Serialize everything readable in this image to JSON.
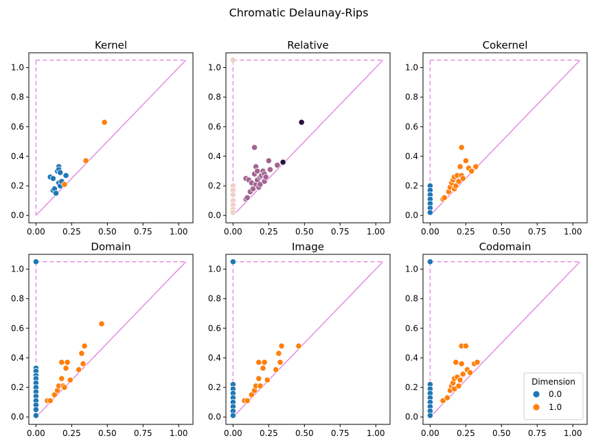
{
  "figure": {
    "title": "Chromatic Delaunay-Rips"
  },
  "colors": {
    "dim0": "#1f77b4",
    "dim1": "#ff7f0e",
    "diagonal": "#e28de0",
    "relative_low": "#f0cfc6",
    "relative_mid": "#a26592",
    "relative_high": "#2b1341"
  },
  "legend": {
    "title": "Dimension",
    "entries": [
      {
        "label": "0.0",
        "color": "#1f77b4"
      },
      {
        "label": "1.0",
        "color": "#ff7f0e"
      }
    ],
    "placement": "lower-right of Codomain panel"
  },
  "chart_data": [
    {
      "type": "scatter",
      "title": "Kernel",
      "xlim": [
        -0.05,
        1.1
      ],
      "ylim": [
        -0.05,
        1.1
      ],
      "xticks": [
        "0.00",
        "0.25",
        "0.50",
        "0.75",
        "1.00"
      ],
      "yticks": [
        "0.0",
        "0.2",
        "0.4",
        "0.6",
        "0.8",
        "1.0"
      ],
      "diagonal": true,
      "infinity_line": 1.05,
      "points": [
        [
          0.1,
          0.26,
          "dim0"
        ],
        [
          0.12,
          0.25,
          "dim0"
        ],
        [
          0.12,
          0.17,
          "dim0"
        ],
        [
          0.13,
          0.18,
          "dim0"
        ],
        [
          0.14,
          0.15,
          "dim0"
        ],
        [
          0.15,
          0.3,
          "dim0"
        ],
        [
          0.16,
          0.33,
          "dim0"
        ],
        [
          0.16,
          0.31,
          "dim0"
        ],
        [
          0.17,
          0.29,
          "dim0"
        ],
        [
          0.16,
          0.22,
          "dim0"
        ],
        [
          0.17,
          0.2,
          "dim0"
        ],
        [
          0.2,
          0.21,
          "dim0"
        ],
        [
          0.21,
          0.27,
          "dim0"
        ],
        [
          0.18,
          0.23,
          "dim0"
        ],
        [
          0.2,
          0.21,
          "dim1"
        ],
        [
          0.35,
          0.37,
          "dim1"
        ],
        [
          0.48,
          0.63,
          "dim1"
        ]
      ]
    },
    {
      "type": "scatter",
      "title": "Relative",
      "xlim": [
        -0.05,
        1.1
      ],
      "ylim": [
        -0.05,
        1.1
      ],
      "xticks": [
        "0.00",
        "0.25",
        "0.50",
        "0.75",
        "1.00"
      ],
      "yticks": [
        "0.0",
        "0.2",
        "0.4",
        "0.6",
        "0.8",
        "1.0"
      ],
      "diagonal": true,
      "infinity_line": 1.05,
      "points": [
        [
          0.0,
          1.05,
          "relative_low"
        ],
        [
          0.0,
          0.2,
          "relative_low"
        ],
        [
          0.0,
          0.17,
          "relative_low"
        ],
        [
          0.0,
          0.14,
          "relative_low"
        ],
        [
          0.0,
          0.1,
          "relative_low"
        ],
        [
          0.0,
          0.07,
          "relative_low"
        ],
        [
          0.0,
          0.04,
          "relative_low"
        ],
        [
          0.0,
          0.02,
          "relative_low"
        ],
        [
          0.09,
          0.11,
          "relative_mid"
        ],
        [
          0.1,
          0.12,
          "relative_mid"
        ],
        [
          0.09,
          0.25,
          "relative_mid"
        ],
        [
          0.11,
          0.24,
          "relative_mid"
        ],
        [
          0.12,
          0.16,
          "relative_mid"
        ],
        [
          0.13,
          0.22,
          "relative_mid"
        ],
        [
          0.14,
          0.18,
          "relative_mid"
        ],
        [
          0.15,
          0.46,
          "relative_mid"
        ],
        [
          0.15,
          0.28,
          "relative_mid"
        ],
        [
          0.16,
          0.33,
          "relative_mid"
        ],
        [
          0.16,
          0.21,
          "relative_mid"
        ],
        [
          0.17,
          0.3,
          "relative_mid"
        ],
        [
          0.17,
          0.24,
          "relative_mid"
        ],
        [
          0.18,
          0.19,
          "relative_mid"
        ],
        [
          0.19,
          0.26,
          "relative_mid"
        ],
        [
          0.19,
          0.21,
          "relative_mid"
        ],
        [
          0.2,
          0.27,
          "relative_mid"
        ],
        [
          0.21,
          0.3,
          "relative_mid"
        ],
        [
          0.22,
          0.23,
          "relative_mid"
        ],
        [
          0.22,
          0.28,
          "relative_mid"
        ],
        [
          0.23,
          0.26,
          "relative_mid"
        ],
        [
          0.25,
          0.37,
          "relative_mid"
        ],
        [
          0.26,
          0.31,
          "relative_mid"
        ],
        [
          0.31,
          0.34,
          "relative_mid"
        ],
        [
          0.35,
          0.36,
          "relative_high"
        ],
        [
          0.48,
          0.63,
          "relative_high"
        ]
      ]
    },
    {
      "type": "scatter",
      "title": "Cokernel",
      "xlim": [
        -0.05,
        1.1
      ],
      "ylim": [
        -0.05,
        1.1
      ],
      "xticks": [
        "0.00",
        "0.25",
        "0.50",
        "0.75",
        "1.00"
      ],
      "yticks": [
        "0.0",
        "0.2",
        "0.4",
        "0.6",
        "0.8",
        "1.0"
      ],
      "diagonal": true,
      "infinity_line": 1.05,
      "points": [
        [
          0.0,
          0.2,
          "dim0"
        ],
        [
          0.0,
          0.17,
          "dim0"
        ],
        [
          0.0,
          0.14,
          "dim0"
        ],
        [
          0.0,
          0.11,
          "dim0"
        ],
        [
          0.0,
          0.08,
          "dim0"
        ],
        [
          0.0,
          0.05,
          "dim0"
        ],
        [
          0.0,
          0.02,
          "dim0"
        ],
        [
          0.09,
          0.11,
          "dim1"
        ],
        [
          0.1,
          0.12,
          "dim1"
        ],
        [
          0.13,
          0.16,
          "dim1"
        ],
        [
          0.14,
          0.19,
          "dim1"
        ],
        [
          0.15,
          0.22,
          "dim1"
        ],
        [
          0.16,
          0.24,
          "dim1"
        ],
        [
          0.17,
          0.26,
          "dim1"
        ],
        [
          0.17,
          0.18,
          "dim1"
        ],
        [
          0.18,
          0.2,
          "dim1"
        ],
        [
          0.19,
          0.27,
          "dim1"
        ],
        [
          0.2,
          0.23,
          "dim1"
        ],
        [
          0.21,
          0.33,
          "dim1"
        ],
        [
          0.22,
          0.46,
          "dim1"
        ],
        [
          0.22,
          0.27,
          "dim1"
        ],
        [
          0.23,
          0.25,
          "dim1"
        ],
        [
          0.25,
          0.37,
          "dim1"
        ],
        [
          0.27,
          0.32,
          "dim1"
        ],
        [
          0.29,
          0.3,
          "dim1"
        ],
        [
          0.32,
          0.33,
          "dim1"
        ]
      ]
    },
    {
      "type": "scatter",
      "title": "Domain",
      "xlim": [
        -0.05,
        1.1
      ],
      "ylim": [
        -0.05,
        1.1
      ],
      "xticks": [
        "0.00",
        "0.25",
        "0.50",
        "0.75",
        "1.00"
      ],
      "yticks": [
        "0.0",
        "0.2",
        "0.4",
        "0.6",
        "0.8",
        "1.0"
      ],
      "diagonal": true,
      "infinity_line": 1.05,
      "points": [
        [
          0.0,
          1.05,
          "dim0"
        ],
        [
          0.0,
          0.33,
          "dim0"
        ],
        [
          0.0,
          0.31,
          "dim0"
        ],
        [
          0.0,
          0.28,
          "dim0"
        ],
        [
          0.0,
          0.26,
          "dim0"
        ],
        [
          0.0,
          0.23,
          "dim0"
        ],
        [
          0.0,
          0.2,
          "dim0"
        ],
        [
          0.0,
          0.17,
          "dim0"
        ],
        [
          0.0,
          0.14,
          "dim0"
        ],
        [
          0.0,
          0.11,
          "dim0"
        ],
        [
          0.0,
          0.08,
          "dim0"
        ],
        [
          0.0,
          0.05,
          "dim0"
        ],
        [
          0.0,
          0.01,
          "dim0"
        ],
        [
          0.08,
          0.11,
          "dim1"
        ],
        [
          0.1,
          0.11,
          "dim1"
        ],
        [
          0.13,
          0.15,
          "dim1"
        ],
        [
          0.15,
          0.18,
          "dim1"
        ],
        [
          0.16,
          0.21,
          "dim1"
        ],
        [
          0.18,
          0.37,
          "dim1"
        ],
        [
          0.18,
          0.26,
          "dim1"
        ],
        [
          0.19,
          0.21,
          "dim1"
        ],
        [
          0.2,
          0.2,
          "dim1"
        ],
        [
          0.21,
          0.33,
          "dim1"
        ],
        [
          0.22,
          0.37,
          "dim1"
        ],
        [
          0.24,
          0.25,
          "dim1"
        ],
        [
          0.3,
          0.32,
          "dim1"
        ],
        [
          0.32,
          0.43,
          "dim1"
        ],
        [
          0.33,
          0.36,
          "dim1"
        ],
        [
          0.34,
          0.48,
          "dim1"
        ],
        [
          0.46,
          0.63,
          "dim1"
        ]
      ]
    },
    {
      "type": "scatter",
      "title": "Image",
      "xlim": [
        -0.05,
        1.1
      ],
      "ylim": [
        -0.05,
        1.1
      ],
      "xticks": [
        "0.00",
        "0.25",
        "0.50",
        "0.75",
        "1.00"
      ],
      "yticks": [
        "0.0",
        "0.2",
        "0.4",
        "0.6",
        "0.8",
        "1.0"
      ],
      "diagonal": true,
      "infinity_line": 1.05,
      "points": [
        [
          0.0,
          1.05,
          "dim0"
        ],
        [
          0.0,
          0.22,
          "dim0"
        ],
        [
          0.0,
          0.19,
          "dim0"
        ],
        [
          0.0,
          0.16,
          "dim0"
        ],
        [
          0.0,
          0.13,
          "dim0"
        ],
        [
          0.0,
          0.1,
          "dim0"
        ],
        [
          0.0,
          0.07,
          "dim0"
        ],
        [
          0.0,
          0.04,
          "dim0"
        ],
        [
          0.0,
          0.01,
          "dim0"
        ],
        [
          0.08,
          0.11,
          "dim1"
        ],
        [
          0.1,
          0.11,
          "dim1"
        ],
        [
          0.13,
          0.15,
          "dim1"
        ],
        [
          0.15,
          0.18,
          "dim1"
        ],
        [
          0.16,
          0.21,
          "dim1"
        ],
        [
          0.18,
          0.37,
          "dim1"
        ],
        [
          0.18,
          0.26,
          "dim1"
        ],
        [
          0.19,
          0.21,
          "dim1"
        ],
        [
          0.21,
          0.33,
          "dim1"
        ],
        [
          0.22,
          0.37,
          "dim1"
        ],
        [
          0.24,
          0.25,
          "dim1"
        ],
        [
          0.3,
          0.32,
          "dim1"
        ],
        [
          0.32,
          0.43,
          "dim1"
        ],
        [
          0.33,
          0.37,
          "dim1"
        ],
        [
          0.34,
          0.48,
          "dim1"
        ],
        [
          0.46,
          0.48,
          "dim1"
        ]
      ]
    },
    {
      "type": "scatter",
      "title": "Codomain",
      "xlim": [
        -0.05,
        1.1
      ],
      "ylim": [
        -0.05,
        1.1
      ],
      "xticks": [
        "0.00",
        "0.25",
        "0.50",
        "0.75",
        "1.00"
      ],
      "yticks": [
        "0.0",
        "0.2",
        "0.4",
        "0.6",
        "0.8",
        "1.0"
      ],
      "diagonal": true,
      "infinity_line": 1.05,
      "points": [
        [
          0.0,
          1.05,
          "dim0"
        ],
        [
          0.0,
          0.22,
          "dim0"
        ],
        [
          0.0,
          0.19,
          "dim0"
        ],
        [
          0.0,
          0.16,
          "dim0"
        ],
        [
          0.0,
          0.13,
          "dim0"
        ],
        [
          0.0,
          0.1,
          "dim0"
        ],
        [
          0.0,
          0.07,
          "dim0"
        ],
        [
          0.0,
          0.04,
          "dim0"
        ],
        [
          0.0,
          0.01,
          "dim0"
        ],
        [
          0.09,
          0.11,
          "dim1"
        ],
        [
          0.12,
          0.13,
          "dim1"
        ],
        [
          0.14,
          0.18,
          "dim1"
        ],
        [
          0.15,
          0.21,
          "dim1"
        ],
        [
          0.16,
          0.23,
          "dim1"
        ],
        [
          0.17,
          0.26,
          "dim1"
        ],
        [
          0.17,
          0.19,
          "dim1"
        ],
        [
          0.18,
          0.37,
          "dim1"
        ],
        [
          0.19,
          0.27,
          "dim1"
        ],
        [
          0.2,
          0.21,
          "dim1"
        ],
        [
          0.21,
          0.25,
          "dim1"
        ],
        [
          0.22,
          0.48,
          "dim1"
        ],
        [
          0.22,
          0.36,
          "dim1"
        ],
        [
          0.23,
          0.29,
          "dim1"
        ],
        [
          0.25,
          0.48,
          "dim1"
        ],
        [
          0.26,
          0.32,
          "dim1"
        ],
        [
          0.28,
          0.3,
          "dim1"
        ],
        [
          0.31,
          0.36,
          "dim1"
        ],
        [
          0.33,
          0.37,
          "dim1"
        ]
      ]
    }
  ]
}
